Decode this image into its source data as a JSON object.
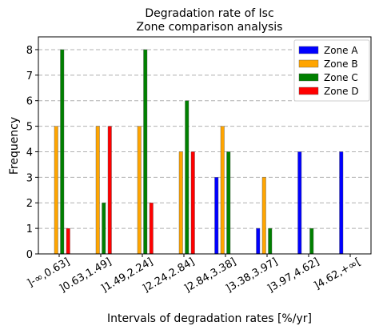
{
  "chart_data": {
    "type": "bar",
    "title": "Degradation rate of Isc",
    "subtitle": "Zone comparison analysis",
    "xlabel": "Intervals of degradation rates [%/yr]",
    "ylabel": "Frequency",
    "categories": [
      "]-∞,0.63]",
      "]0.63,1.49]",
      "]1.49,2.24]",
      "]2.24,2.84]",
      "]2.84,3.38]",
      "]3.38,3.97]",
      "]3.97,4.62]",
      "]4.62,+∞["
    ],
    "ylim": [
      0,
      8.5
    ],
    "yticks": [
      0,
      1,
      2,
      3,
      4,
      5,
      6,
      7,
      8
    ],
    "grid": "horizontal dashed",
    "legend_position": "top-right",
    "series": [
      {
        "name": "Zone A",
        "color": "#0000ff",
        "values": [
          0,
          0,
          0,
          0,
          3,
          1,
          4,
          4
        ]
      },
      {
        "name": "Zone B",
        "color": "#ffa500",
        "values": [
          5,
          5,
          5,
          4,
          5,
          3,
          0,
          0
        ]
      },
      {
        "name": "Zone C",
        "color": "#008000",
        "values": [
          8,
          2,
          8,
          6,
          4,
          1,
          1,
          0
        ]
      },
      {
        "name": "Zone D",
        "color": "#ff0000",
        "values": [
          1,
          5,
          2,
          4,
          0,
          0,
          0,
          0
        ]
      }
    ]
  }
}
